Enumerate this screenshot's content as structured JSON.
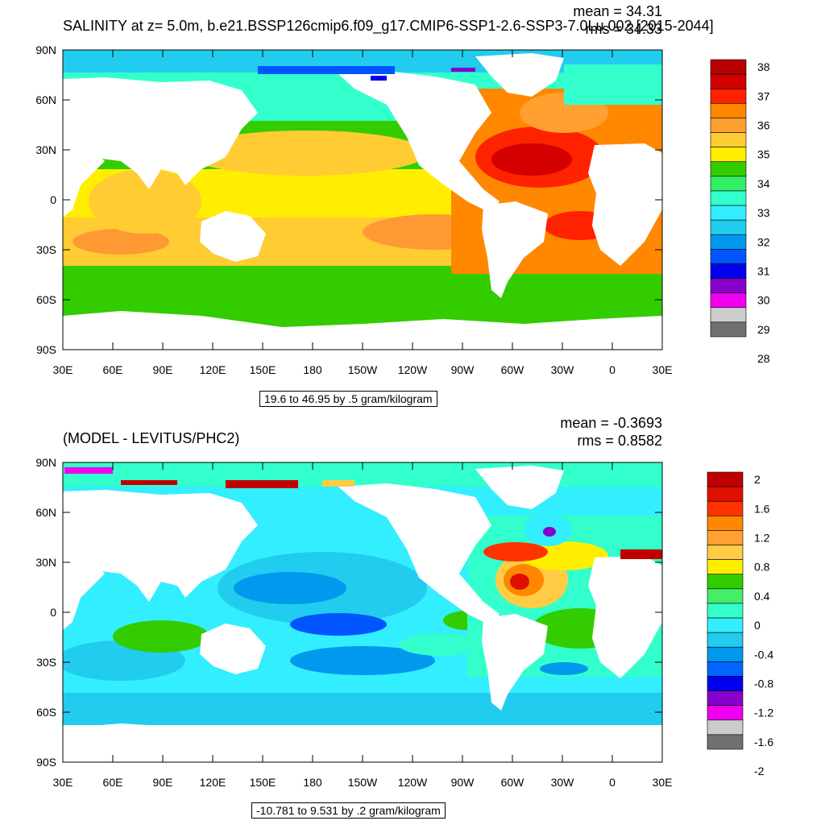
{
  "panels": [
    {
      "id": "salinity",
      "title": "SALINITY at z=   5.0m, b.e21.BSSP126cmip6.f09_g17.CMIP6-SSP1-2.6-SSP3-7.0Lu.002 [2015-2044]",
      "mean_label": "mean = 34.31",
      "rms_label": "rms = 34.33",
      "caption": "19.6 to 46.95 by .5 gram/kilogram",
      "colorbar": {
        "labels": [
          "38",
          "37",
          "36",
          "35",
          "34",
          "33",
          "32",
          "31",
          "30",
          "29",
          "28"
        ],
        "colors": [
          "#b80000",
          "#d40000",
          "#ff2200",
          "#ff8800",
          "#ffa030",
          "#ffcc33",
          "#ffee00",
          "#33cc00",
          "#33ee66",
          "#33ffcc",
          "#33eeff",
          "#22ccee",
          "#0099ee",
          "#0055ff",
          "#0000ee",
          "#8800cc",
          "#ee00ee",
          "#cccccc",
          "#707070"
        ]
      }
    },
    {
      "id": "difference",
      "title": "(MODEL - LEVITUS/PHC2)",
      "mean_label": "mean = -0.3693",
      "rms_label": "rms = 0.8582",
      "caption": "-10.781 to 9.531 by .2 gram/kilogram",
      "colorbar": {
        "labels": [
          "2",
          "1.6",
          "1.2",
          "0.8",
          "0.4",
          "0",
          "-0.4",
          "-0.8",
          "-1.2",
          "-1.6",
          "-2"
        ],
        "colors": [
          "#c00000",
          "#e01000",
          "#ff3300",
          "#ff8800",
          "#ffa030",
          "#ffcc44",
          "#ffee00",
          "#33cc00",
          "#44ee66",
          "#33ffcc",
          "#33eeff",
          "#22ccee",
          "#0099ee",
          "#0066ff",
          "#0000ee",
          "#8800cc",
          "#ee00ee",
          "#cccccc",
          "#707070"
        ]
      }
    }
  ],
  "axes": {
    "lat_labels": [
      "90N",
      "60N",
      "30N",
      "0",
      "30S",
      "60S",
      "90S"
    ],
    "lon_labels": [
      "30E",
      "60E",
      "90E",
      "120E",
      "150E",
      "180",
      "150W",
      "120W",
      "90W",
      "60W",
      "30W",
      "0",
      "30E"
    ]
  }
}
